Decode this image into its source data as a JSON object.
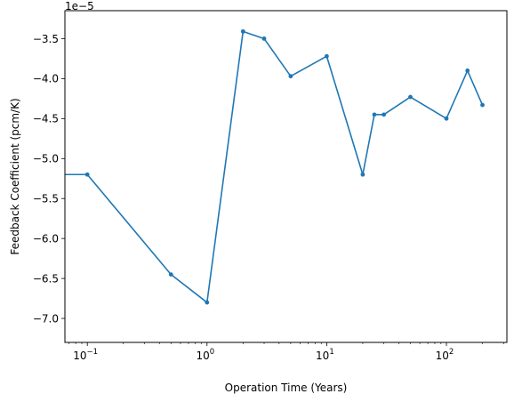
{
  "chart_data": {
    "type": "line",
    "title": "",
    "xlabel": "Operation Time (Years)",
    "ylabel": "Feedback Coefficient (pcm/K)",
    "x_scale": "log",
    "y_offset_label": "1e−5",
    "xlim": [
      0.065,
      320
    ],
    "ylim": [
      -7.3,
      -3.15
    ],
    "y_ticks": [
      -3.5,
      -4.0,
      -4.5,
      -5.0,
      -5.5,
      -6.0,
      -6.5,
      -7.0
    ],
    "y_tick_labels": [
      "−3.5",
      "−4.0",
      "−4.5",
      "−5.0",
      "−5.5",
      "−6.0",
      "−6.5",
      "−7.0"
    ],
    "x_ticks": [
      {
        "value": 0.1,
        "base": "10",
        "exp": "−1"
      },
      {
        "value": 1,
        "base": "10",
        "exp": "0"
      },
      {
        "value": 10,
        "base": "10",
        "exp": "1"
      },
      {
        "value": 100,
        "base": "10",
        "exp": "2"
      }
    ],
    "grid": false,
    "legend": "none",
    "series": [
      {
        "color": "#1f77b4",
        "marker": "circle",
        "x": [
          0,
          0.1,
          0.5,
          1,
          2,
          3,
          5,
          10,
          20,
          25,
          30,
          50,
          100,
          150,
          200
        ],
        "y": [
          -5.2,
          -5.2,
          -6.45,
          -6.8,
          -3.41,
          -3.5,
          -3.97,
          -3.72,
          -5.2,
          -4.45,
          -4.45,
          -4.23,
          -4.5,
          -3.9,
          -4.33
        ]
      }
    ]
  }
}
